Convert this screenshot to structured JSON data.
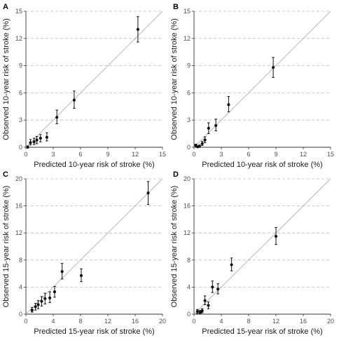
{
  "chart_data": [
    {
      "panel": "A",
      "type": "scatter",
      "xlabel": "Predicted 10-year risk of stroke (%)",
      "ylabel": "Observed 10-year risk of stroke (%)",
      "xlim": [
        0,
        15
      ],
      "ylim": [
        0,
        15
      ],
      "xticks": [
        0,
        3,
        6,
        9,
        12,
        15
      ],
      "yticks": [
        0,
        3,
        6,
        9,
        12,
        15
      ],
      "grid": "horizontal dashed",
      "reference_line": "y = x",
      "points": [
        {
          "x": 0.2,
          "y": 0.0,
          "lo": 0.0,
          "hi": 0.15
        },
        {
          "x": 0.5,
          "y": 0.5,
          "lo": 0.25,
          "hi": 0.85
        },
        {
          "x": 0.9,
          "y": 0.6,
          "lo": 0.3,
          "hi": 1.0
        },
        {
          "x": 1.2,
          "y": 0.8,
          "lo": 0.4,
          "hi": 1.2
        },
        {
          "x": 1.6,
          "y": 1.0,
          "lo": 0.6,
          "hi": 1.4
        },
        {
          "x": 2.3,
          "y": 1.1,
          "lo": 0.7,
          "hi": 1.6
        },
        {
          "x": 3.4,
          "y": 3.3,
          "lo": 2.6,
          "hi": 4.1
        },
        {
          "x": 5.3,
          "y": 5.2,
          "lo": 4.3,
          "hi": 6.2
        },
        {
          "x": 12.3,
          "y": 13.0,
          "lo": 11.6,
          "hi": 14.4
        }
      ]
    },
    {
      "panel": "B",
      "type": "scatter",
      "xlabel": "Predicted 10-year risk of stroke (%)",
      "ylabel": "Observed 10-year risk of stroke (%)",
      "xlim": [
        0,
        15
      ],
      "ylim": [
        0,
        15
      ],
      "xticks": [
        0,
        3,
        6,
        9,
        12,
        15
      ],
      "yticks": [
        0,
        3,
        6,
        9,
        12,
        15
      ],
      "grid": "horizontal dashed",
      "reference_line": "y = x",
      "points": [
        {
          "x": 0.2,
          "y": 0.2,
          "lo": 0.05,
          "hi": 0.35
        },
        {
          "x": 0.4,
          "y": 0.05,
          "lo": 0.0,
          "hi": 0.15
        },
        {
          "x": 0.6,
          "y": 0.1,
          "lo": 0.0,
          "hi": 0.25
        },
        {
          "x": 0.9,
          "y": 0.4,
          "lo": 0.2,
          "hi": 0.65
        },
        {
          "x": 1.2,
          "y": 0.8,
          "lo": 0.5,
          "hi": 1.15
        },
        {
          "x": 1.6,
          "y": 2.1,
          "lo": 1.5,
          "hi": 2.7
        },
        {
          "x": 2.4,
          "y": 2.4,
          "lo": 1.8,
          "hi": 3.1
        },
        {
          "x": 3.8,
          "y": 4.7,
          "lo": 3.9,
          "hi": 5.6
        },
        {
          "x": 8.7,
          "y": 8.8,
          "lo": 7.7,
          "hi": 9.9
        }
      ]
    },
    {
      "panel": "C",
      "type": "scatter",
      "xlabel": "Predicted 15-year risk of stroke (%)",
      "ylabel": "Observed 15-year risk of stroke (%)",
      "xlim": [
        0,
        20
      ],
      "ylim": [
        0,
        20
      ],
      "xticks": [
        0,
        4,
        8,
        12,
        16,
        20
      ],
      "yticks": [
        0,
        4,
        8,
        12,
        16,
        20
      ],
      "grid": "horizontal dashed",
      "reference_line": "y = x",
      "points": [
        {
          "x": 0.9,
          "y": 0.6,
          "lo": 0.3,
          "hi": 1.0
        },
        {
          "x": 1.4,
          "y": 1.1,
          "lo": 0.6,
          "hi": 1.6
        },
        {
          "x": 1.8,
          "y": 1.4,
          "lo": 0.8,
          "hi": 2.0
        },
        {
          "x": 2.3,
          "y": 1.9,
          "lo": 1.2,
          "hi": 2.6
        },
        {
          "x": 2.8,
          "y": 2.3,
          "lo": 1.5,
          "hi": 3.1
        },
        {
          "x": 3.5,
          "y": 2.4,
          "lo": 1.7,
          "hi": 3.3
        },
        {
          "x": 4.2,
          "y": 3.3,
          "lo": 2.5,
          "hi": 4.1
        },
        {
          "x": 5.3,
          "y": 6.3,
          "lo": 5.2,
          "hi": 7.5
        },
        {
          "x": 8.1,
          "y": 5.7,
          "lo": 4.8,
          "hi": 6.7
        },
        {
          "x": 17.9,
          "y": 17.9,
          "lo": 16.2,
          "hi": 19.6
        }
      ]
    },
    {
      "panel": "D",
      "type": "scatter",
      "xlabel": "Predicted 15-year risk of stroke (%)",
      "ylabel": "Observed 15-year risk of stroke (%)",
      "xlim": [
        0,
        20
      ],
      "ylim": [
        0,
        20
      ],
      "xticks": [
        0,
        4,
        8,
        12,
        16,
        20
      ],
      "yticks": [
        0,
        4,
        8,
        12,
        16,
        20
      ],
      "grid": "horizontal dashed",
      "reference_line": "y = x",
      "points": [
        {
          "x": 0.5,
          "y": 0.4,
          "lo": 0.1,
          "hi": 0.7
        },
        {
          "x": 0.9,
          "y": 0.3,
          "lo": 0.1,
          "hi": 0.55
        },
        {
          "x": 1.2,
          "y": 0.5,
          "lo": 0.2,
          "hi": 0.8
        },
        {
          "x": 1.6,
          "y": 2.0,
          "lo": 1.4,
          "hi": 2.7
        },
        {
          "x": 2.1,
          "y": 1.3,
          "lo": 0.8,
          "hi": 1.8
        },
        {
          "x": 2.7,
          "y": 4.0,
          "lo": 3.2,
          "hi": 4.9
        },
        {
          "x": 3.5,
          "y": 3.7,
          "lo": 3.0,
          "hi": 4.5
        },
        {
          "x": 5.5,
          "y": 7.3,
          "lo": 6.4,
          "hi": 8.3
        },
        {
          "x": 12.0,
          "y": 11.5,
          "lo": 10.3,
          "hi": 12.8
        }
      ]
    }
  ]
}
